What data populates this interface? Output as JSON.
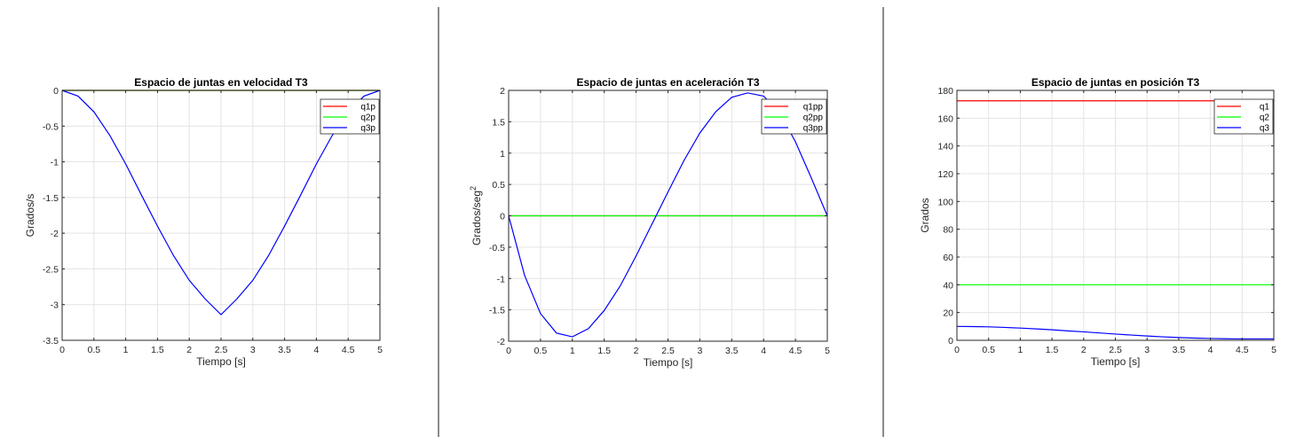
{
  "chart_data": [
    {
      "type": "line",
      "title": "Espacio de juntas en velocidad T3",
      "xlabel": "Tiempo [s]",
      "ylabel": "Grados/s",
      "xlim": [
        0,
        5
      ],
      "ylim": [
        -3.5,
        0
      ],
      "xticks": [
        "0",
        "0.5",
        "1",
        "1.5",
        "2",
        "2.5",
        "3",
        "3.5",
        "4",
        "4.5",
        "5"
      ],
      "yticks": [
        "0",
        "-0.5",
        "-1",
        "-1.5",
        "-2",
        "-2.5",
        "-3",
        "-3.5"
      ],
      "grid": true,
      "legend_position": "top-right",
      "x": [
        0,
        0.25,
        0.5,
        0.75,
        1,
        1.25,
        1.5,
        1.75,
        2,
        2.25,
        2.5,
        2.75,
        3,
        3.25,
        3.5,
        3.75,
        4,
        4.25,
        4.5,
        4.75,
        5
      ],
      "series": [
        {
          "name": "q1p",
          "color": "#ff0000",
          "values": [
            0,
            0,
            0,
            0,
            0,
            0,
            0,
            0,
            0,
            0,
            0,
            0,
            0,
            0,
            0,
            0,
            0,
            0,
            0,
            0,
            0
          ]
        },
        {
          "name": "q2p",
          "color": "#00ff00",
          "values": [
            0,
            0,
            0,
            0,
            0,
            0,
            0,
            0,
            0,
            0,
            0,
            0,
            0,
            0,
            0,
            0,
            0,
            0,
            0,
            0,
            0
          ]
        },
        {
          "name": "q3p",
          "color": "#0000ff",
          "values": [
            0,
            -0.08,
            -0.3,
            -0.63,
            -1.03,
            -1.47,
            -1.9,
            -2.31,
            -2.66,
            -2.92,
            -3.14,
            -2.92,
            -2.66,
            -2.31,
            -1.9,
            -1.47,
            -1.03,
            -0.63,
            -0.3,
            -0.08,
            0
          ]
        }
      ]
    },
    {
      "type": "line",
      "title": "Espacio de juntas en aceleración T3",
      "xlabel": "Tiempo [s]",
      "ylabel": "Grados/seg",
      "ylabel_sup": "2",
      "xlim": [
        0,
        5
      ],
      "ylim": [
        -2,
        2
      ],
      "xticks": [
        "0",
        "0.5",
        "1",
        "1.5",
        "2",
        "2.5",
        "3",
        "3.5",
        "4",
        "4.5",
        "5"
      ],
      "yticks": [
        "2",
        "1.5",
        "1",
        "0.5",
        "0",
        "-0.5",
        "-1",
        "-1.5",
        "-2"
      ],
      "grid": true,
      "legend_position": "top-right",
      "x": [
        0,
        0.25,
        0.5,
        0.75,
        1,
        1.25,
        1.5,
        1.75,
        2,
        2.25,
        2.5,
        2.75,
        3,
        3.25,
        3.5,
        3.75,
        4,
        4.25,
        4.5,
        4.75,
        5
      ],
      "series": [
        {
          "name": "q1pp",
          "color": "#ff0000",
          "values": [
            0,
            0,
            0,
            0,
            0,
            0,
            0,
            0,
            0,
            0,
            0,
            0,
            0,
            0,
            0,
            0,
            0,
            0,
            0,
            0,
            0
          ]
        },
        {
          "name": "q2pp",
          "color": "#00ff00",
          "values": [
            0,
            0,
            0,
            0,
            0,
            0,
            0,
            0,
            0,
            0,
            0,
            0,
            0,
            0,
            0,
            0,
            0,
            0,
            0,
            0,
            0
          ]
        },
        {
          "name": "q3pp",
          "color": "#0000ff",
          "values": [
            0,
            -0.95,
            -1.56,
            -1.87,
            -1.93,
            -1.8,
            -1.51,
            -1.12,
            -0.64,
            -0.13,
            0.38,
            0.88,
            1.32,
            1.66,
            1.89,
            1.96,
            1.91,
            1.65,
            1.18,
            0.6,
            0
          ]
        }
      ]
    },
    {
      "type": "line",
      "title": "Espacio de juntas en posición T3",
      "xlabel": "Tiempo [s]",
      "ylabel": "Grados",
      "xlim": [
        0,
        5
      ],
      "ylim": [
        0,
        180
      ],
      "xticks": [
        "0",
        "0.5",
        "1",
        "1.5",
        "2",
        "2.5",
        "3",
        "3.5",
        "4",
        "4.5",
        "5"
      ],
      "yticks": [
        "180",
        "160",
        "140",
        "120",
        "100",
        "80",
        "60",
        "40",
        "20",
        "0"
      ],
      "grid": true,
      "legend_position": "top-right",
      "x": [
        0,
        0.25,
        0.5,
        0.75,
        1,
        1.25,
        1.5,
        1.75,
        2,
        2.25,
        2.5,
        2.75,
        3,
        3.25,
        3.5,
        3.75,
        4,
        4.25,
        4.5,
        4.75,
        5
      ],
      "series": [
        {
          "name": "q1",
          "color": "#ff0000",
          "values": [
            172.5,
            172.5,
            172.5,
            172.5,
            172.5,
            172.5,
            172.5,
            172.5,
            172.5,
            172.5,
            172.5,
            172.5,
            172.5,
            172.5,
            172.5,
            172.5,
            172.5,
            172.5,
            172.5,
            172.5,
            172.5
          ]
        },
        {
          "name": "q2",
          "color": "#00ff00",
          "values": [
            40,
            40,
            40,
            40,
            40,
            40,
            40,
            40,
            40,
            40,
            40,
            40,
            40,
            40,
            40,
            40,
            40,
            40,
            40,
            40,
            40
          ]
        },
        {
          "name": "q3",
          "color": "#0000ff",
          "values": [
            10,
            9.9,
            9.7,
            9.3,
            8.8,
            8.2,
            7.6,
            6.8,
            6.1,
            5.3,
            4.5,
            3.8,
            3.1,
            2.5,
            2.0,
            1.6,
            1.3,
            1.1,
            1.0,
            1.0,
            1.0
          ]
        }
      ]
    }
  ]
}
